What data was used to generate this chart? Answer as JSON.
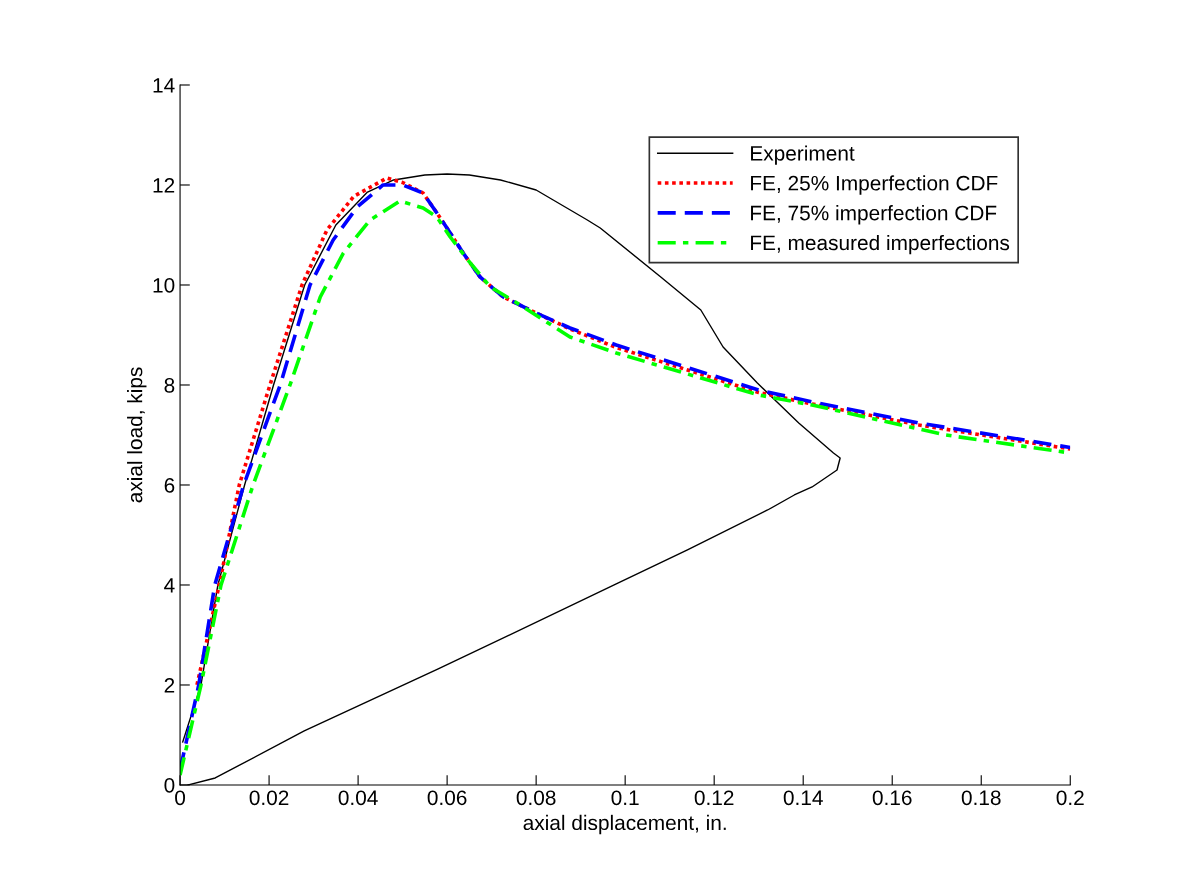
{
  "chart_data": {
    "type": "line",
    "xlabel": "axial displacement, in.",
    "ylabel": "axial load, kips",
    "xlim": [
      0,
      0.2
    ],
    "ylim": [
      0,
      14
    ],
    "xticks": [
      0,
      0.02,
      0.04,
      0.06,
      0.08,
      0.1,
      0.12,
      0.14,
      0.16,
      0.18,
      0.2
    ],
    "yticks": [
      0,
      2,
      4,
      6,
      8,
      10,
      12,
      14
    ],
    "grid": false,
    "legend": "top right",
    "marker": "none",
    "series": [
      {
        "name": "Experiment",
        "color": "#000000",
        "line_style": "solid",
        "x": [
          0.0006,
          0.0047,
          0.0085,
          0.0145,
          0.021,
          0.028,
          0.035,
          0.042,
          0.048,
          0.055,
          0.06,
          0.065,
          0.072,
          0.08,
          0.0915,
          0.0944,
          0.108,
          0.117,
          0.122,
          0.1297,
          0.139,
          0.1468,
          0.1483,
          0.1476,
          0.142,
          0.138,
          0.132,
          0.114,
          0.098,
          0.058,
          0.0279,
          0.0079,
          0.0018
        ],
        "values": [
          0.86,
          2,
          4,
          6,
          8,
          10,
          11.2,
          11.85,
          12.1,
          12.2,
          12.22,
          12.2,
          12.1,
          11.9,
          11.3,
          11.14,
          10.16,
          9.5,
          8.76,
          8.04,
          7.24,
          6.64,
          6.54,
          6.3,
          5.96,
          5.8,
          5.5,
          4.7,
          4.02,
          2.32,
          1.08,
          0.14,
          0
        ]
      },
      {
        "name": "FE, 25% Imperfection CDF",
        "color": "#ff0000",
        "line_style": "dotted",
        "x": [
          0.0038,
          0.0088,
          0.0133,
          0.0202,
          0.0274,
          0.033,
          0.039,
          0.0465,
          0.05,
          0.0546,
          0.0577,
          0.0607,
          0.0636,
          0.0674,
          0.0726,
          0.08,
          0.0876,
          0.098,
          0.13,
          0.142,
          0.166,
          0.2
        ],
        "values": [
          2,
          4,
          6,
          8,
          10,
          11.1,
          11.77,
          12.14,
          12.05,
          11.84,
          11.44,
          11.04,
          10.64,
          10.16,
          9.76,
          9.44,
          9.12,
          8.75,
          7.85,
          7.62,
          7.2,
          6.72
        ]
      },
      {
        "name": "FE, 75% imperfection CDF",
        "color": "#0000ff",
        "line_style": "dashed",
        "x": [
          0,
          0.0042,
          0.0078,
          0.0143,
          0.0225,
          0.0292,
          0.0344,
          0.0398,
          0.0456,
          0.05,
          0.0546,
          0.0577,
          0.0607,
          0.0636,
          0.0674,
          0.0726,
          0.08,
          0.0876,
          0.098,
          0.13,
          0.142,
          0.166,
          0.2
        ],
        "values": [
          0.3,
          2,
          4,
          6,
          8,
          10,
          10.9,
          11.56,
          12,
          12,
          11.84,
          11.44,
          11.04,
          10.64,
          10.16,
          9.76,
          9.44,
          9.14,
          8.8,
          7.9,
          7.66,
          7.24,
          6.75
        ]
      },
      {
        "name": "FE, measured imperfections",
        "color": "#00ff00",
        "line_style": "dashdot",
        "x": [
          0,
          0.0047,
          0.0092,
          0.0164,
          0.0247,
          0.0315,
          0.0367,
          0.0427,
          0.0494,
          0.0546,
          0.0577,
          0.0607,
          0.0652,
          0.0697,
          0.0757,
          0.0876,
          0.098,
          0.13,
          0.142,
          0.172,
          0.2
        ],
        "values": [
          0.2,
          2,
          4,
          6,
          8,
          9.76,
          10.64,
          11.3,
          11.68,
          11.54,
          11.36,
          10.96,
          10.44,
          9.96,
          9.64,
          8.96,
          8.64,
          7.8,
          7.6,
          7.0,
          6.64
        ]
      }
    ]
  }
}
